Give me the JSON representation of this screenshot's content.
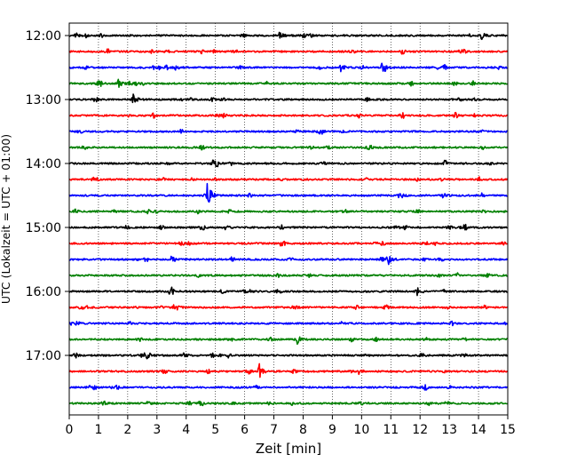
{
  "chart_data": {
    "type": "line",
    "title": "",
    "xlabel": "Zeit  [min]",
    "ylabel": "UTC (Lokalzeit = UTC + 01:00)",
    "xlim": [
      0,
      15
    ],
    "x_ticks": [
      0,
      1,
      2,
      3,
      4,
      5,
      6,
      7,
      8,
      9,
      10,
      11,
      12,
      13,
      14,
      15
    ],
    "y_tick_labels": [
      "12:00",
      "13:00",
      "14:00",
      "15:00",
      "16:00",
      "17:00"
    ],
    "grid": "vertical dotted lines at each minute",
    "trace_start_times": [
      "12:00",
      "12:15",
      "12:30",
      "12:45",
      "13:00",
      "13:15",
      "13:30",
      "13:45",
      "14:00",
      "14:15",
      "14:30",
      "14:45",
      "15:00",
      "15:15",
      "15:30",
      "15:45",
      "16:00",
      "16:15",
      "16:30",
      "16:45",
      "17:00",
      "17:15",
      "17:30",
      "17:45"
    ],
    "color_cycle": [
      "#000000",
      "#ff0000",
      "#0000ff",
      "#008000"
    ],
    "events": [
      {
        "trace": "12:00",
        "minute": 7.2,
        "amplitude": 0.45
      },
      {
        "trace": "12:00",
        "minute": 8.0,
        "amplitude": 0.35
      },
      {
        "trace": "12:00",
        "minute": 14.1,
        "amplitude": 0.6
      },
      {
        "trace": "12:15",
        "minute": 1.3,
        "amplitude": 0.3
      },
      {
        "trace": "12:30",
        "minute": 3.6,
        "amplitude": 0.4
      },
      {
        "trace": "12:30",
        "minute": 9.3,
        "amplitude": 0.6
      },
      {
        "trace": "12:30",
        "minute": 10.7,
        "amplitude": 0.85
      },
      {
        "trace": "12:45",
        "minute": 1.7,
        "amplitude": 0.75
      },
      {
        "trace": "13:00",
        "minute": 2.2,
        "amplitude": 0.85
      },
      {
        "trace": "13:15",
        "minute": 13.2,
        "amplitude": 0.45
      },
      {
        "trace": "14:00",
        "minute": 4.9,
        "amplitude": 0.5
      },
      {
        "trace": "14:30",
        "minute": 4.7,
        "amplitude": 1.7
      },
      {
        "trace": "15:00",
        "minute": 5.3,
        "amplitude": 0.4
      },
      {
        "trace": "15:30",
        "minute": 3.5,
        "amplitude": 0.5
      },
      {
        "trace": "15:30",
        "minute": 10.9,
        "amplitude": 0.65
      },
      {
        "trace": "16:00",
        "minute": 11.9,
        "amplitude": 0.6
      },
      {
        "trace": "16:15",
        "minute": 3.6,
        "amplitude": 0.6
      },
      {
        "trace": "16:45",
        "minute": 7.8,
        "amplitude": 0.5
      },
      {
        "trace": "17:00",
        "minute": 2.6,
        "amplitude": 0.3
      },
      {
        "trace": "17:00",
        "minute": 3.9,
        "amplitude": 0.4
      },
      {
        "trace": "17:15",
        "minute": 6.5,
        "amplitude": 0.85
      },
      {
        "trace": "17:15",
        "minute": 9.9,
        "amplitude": 0.3
      },
      {
        "trace": "17:45",
        "minute": 9.9,
        "amplitude": 0.3
      },
      {
        "trace": "17:45",
        "minute": 12.3,
        "amplitude": 0.35
      }
    ]
  }
}
